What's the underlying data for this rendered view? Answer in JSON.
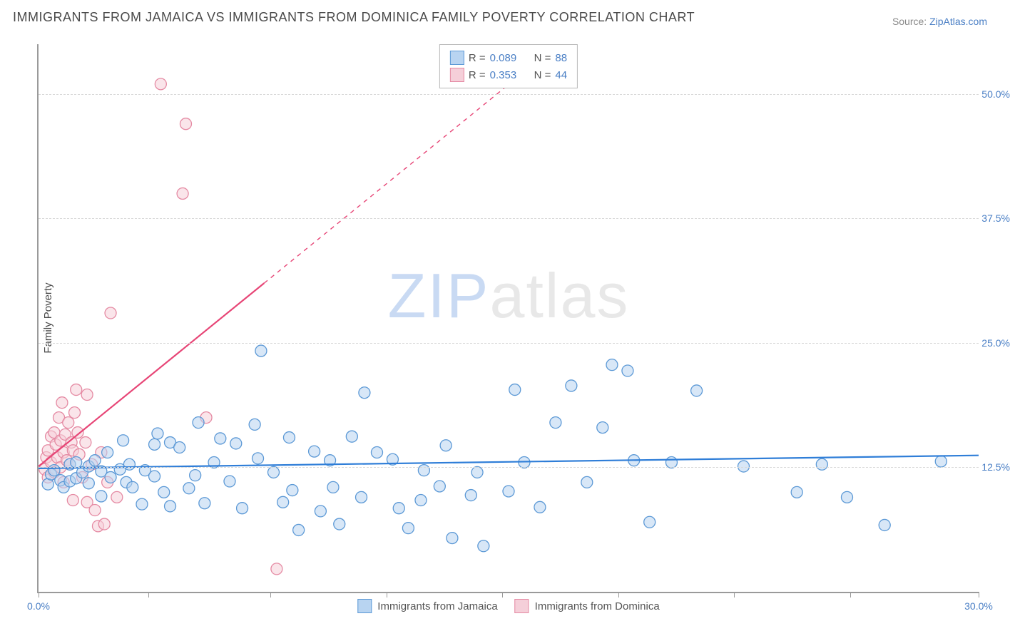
{
  "title": "IMMIGRANTS FROM JAMAICA VS IMMIGRANTS FROM DOMINICA FAMILY POVERTY CORRELATION CHART",
  "source_label": "Source: ",
  "source_link": "ZipAtlas.com",
  "watermark": {
    "zip": "ZIP",
    "atlas": "atlas",
    "zip_color": "#c9daf3",
    "atlas_color": "#e8e8e8"
  },
  "chart": {
    "type": "scatter",
    "background_color": "#ffffff",
    "grid_color": "#d8d8d8",
    "axis_color": "#9a9a9a",
    "xlim": [
      0,
      30
    ],
    "ylim": [
      0,
      55
    ],
    "y_gridlines": [
      12.5,
      25.0,
      37.5,
      50.0
    ],
    "y_tick_labels": [
      "12.5%",
      "25.0%",
      "37.5%",
      "50.0%"
    ],
    "x_tick_positions": [
      0,
      3.5,
      7.4,
      11.1,
      14.8,
      18.5,
      22.2,
      25.9,
      30
    ],
    "x_end_labels": {
      "start": "0.0%",
      "end": "30.0%"
    },
    "y_axis_title": "Family Poverty",
    "marker_radius": 8,
    "marker_stroke_width": 1.3,
    "line_width": 2.2,
    "series": [
      {
        "name": "Immigrants from Jamaica",
        "fill": "#b8d4f1",
        "stroke": "#5c99d6",
        "line_color": "#2f7ed8",
        "R": "0.089",
        "N": "88",
        "trend": {
          "x1": 0,
          "y1": 12.4,
          "x2": 30,
          "y2": 13.7,
          "dashed": false
        },
        "points": [
          [
            0.3,
            10.8
          ],
          [
            0.4,
            11.8
          ],
          [
            0.5,
            12.2
          ],
          [
            0.7,
            11.2
          ],
          [
            0.8,
            10.5
          ],
          [
            1.0,
            12.8
          ],
          [
            1.0,
            11.1
          ],
          [
            1.2,
            13.0
          ],
          [
            1.2,
            11.4
          ],
          [
            1.4,
            12.0
          ],
          [
            1.6,
            12.6
          ],
          [
            1.6,
            10.9
          ],
          [
            1.8,
            13.2
          ],
          [
            2.0,
            12.1
          ],
          [
            2.0,
            9.6
          ],
          [
            2.2,
            14.0
          ],
          [
            2.3,
            11.5
          ],
          [
            2.6,
            12.3
          ],
          [
            2.7,
            15.2
          ],
          [
            2.8,
            11.0
          ],
          [
            2.9,
            12.8
          ],
          [
            3.0,
            10.5
          ],
          [
            3.3,
            8.8
          ],
          [
            3.4,
            12.2
          ],
          [
            3.7,
            11.6
          ],
          [
            3.7,
            14.8
          ],
          [
            3.8,
            15.9
          ],
          [
            4.0,
            10.0
          ],
          [
            4.2,
            8.6
          ],
          [
            4.2,
            15.0
          ],
          [
            4.5,
            14.5
          ],
          [
            4.8,
            10.4
          ],
          [
            5.0,
            11.7
          ],
          [
            5.1,
            17.0
          ],
          [
            5.3,
            8.9
          ],
          [
            5.6,
            13.0
          ],
          [
            5.8,
            15.4
          ],
          [
            6.1,
            11.1
          ],
          [
            6.3,
            14.9
          ],
          [
            6.5,
            8.4
          ],
          [
            6.9,
            16.8
          ],
          [
            7.0,
            13.4
          ],
          [
            7.1,
            24.2
          ],
          [
            7.5,
            12.0
          ],
          [
            7.8,
            9.0
          ],
          [
            8.0,
            15.5
          ],
          [
            8.1,
            10.2
          ],
          [
            8.3,
            6.2
          ],
          [
            8.8,
            14.1
          ],
          [
            9.0,
            8.1
          ],
          [
            9.3,
            13.2
          ],
          [
            9.4,
            10.5
          ],
          [
            9.6,
            6.8
          ],
          [
            10.0,
            15.6
          ],
          [
            10.3,
            9.5
          ],
          [
            10.4,
            20.0
          ],
          [
            10.8,
            14.0
          ],
          [
            11.3,
            13.3
          ],
          [
            11.5,
            8.4
          ],
          [
            11.8,
            6.4
          ],
          [
            12.2,
            9.2
          ],
          [
            12.3,
            12.2
          ],
          [
            12.8,
            10.6
          ],
          [
            13.0,
            14.7
          ],
          [
            13.2,
            5.4
          ],
          [
            13.8,
            9.7
          ],
          [
            14.0,
            12.0
          ],
          [
            14.2,
            4.6
          ],
          [
            15.0,
            10.1
          ],
          [
            15.2,
            20.3
          ],
          [
            15.5,
            13.0
          ],
          [
            16.0,
            8.5
          ],
          [
            16.5,
            17.0
          ],
          [
            17.0,
            20.7
          ],
          [
            17.5,
            11.0
          ],
          [
            18.0,
            16.5
          ],
          [
            18.3,
            22.8
          ],
          [
            18.8,
            22.2
          ],
          [
            19.0,
            13.2
          ],
          [
            19.5,
            7.0
          ],
          [
            20.2,
            13.0
          ],
          [
            21.0,
            20.2
          ],
          [
            22.5,
            12.6
          ],
          [
            24.2,
            10.0
          ],
          [
            25.0,
            12.8
          ],
          [
            25.8,
            9.5
          ],
          [
            27.0,
            6.7
          ],
          [
            28.8,
            13.1
          ]
        ]
      },
      {
        "name": "Immigrants from Dominica",
        "fill": "#f5cfd9",
        "stroke": "#e58aa3",
        "line_color": "#e74576",
        "R": "0.353",
        "N": "44",
        "trend_solid": {
          "x1": 0,
          "y1": 12.6,
          "x2": 7.2,
          "y2": 31.0
        },
        "trend_dash": {
          "x1": 7.2,
          "y1": 31.0,
          "x2": 16.0,
          "y2": 53.5
        },
        "points": [
          [
            0.2,
            12.3
          ],
          [
            0.25,
            13.5
          ],
          [
            0.3,
            11.5
          ],
          [
            0.3,
            14.2
          ],
          [
            0.4,
            15.6
          ],
          [
            0.4,
            13.0
          ],
          [
            0.5,
            12.0
          ],
          [
            0.5,
            16.0
          ],
          [
            0.55,
            14.8
          ],
          [
            0.6,
            13.5
          ],
          [
            0.65,
            17.5
          ],
          [
            0.7,
            15.2
          ],
          [
            0.7,
            12.5
          ],
          [
            0.75,
            19.0
          ],
          [
            0.8,
            14.0
          ],
          [
            0.8,
            11.0
          ],
          [
            0.85,
            15.8
          ],
          [
            0.9,
            13.2
          ],
          [
            0.95,
            17.0
          ],
          [
            1.0,
            12.8
          ],
          [
            1.05,
            15.0
          ],
          [
            1.1,
            9.2
          ],
          [
            1.1,
            14.2
          ],
          [
            1.15,
            18.0
          ],
          [
            1.2,
            20.3
          ],
          [
            1.25,
            16.0
          ],
          [
            1.3,
            13.8
          ],
          [
            1.4,
            11.5
          ],
          [
            1.5,
            15.0
          ],
          [
            1.55,
            9.0
          ],
          [
            1.55,
            19.8
          ],
          [
            1.7,
            12.8
          ],
          [
            1.8,
            8.2
          ],
          [
            1.9,
            6.6
          ],
          [
            2.0,
            14.0
          ],
          [
            2.1,
            6.8
          ],
          [
            2.2,
            11.0
          ],
          [
            2.3,
            28.0
          ],
          [
            2.5,
            9.5
          ],
          [
            3.9,
            51.0
          ],
          [
            4.6,
            40.0
          ],
          [
            4.7,
            47.0
          ],
          [
            5.35,
            17.5
          ],
          [
            7.6,
            2.3
          ]
        ]
      }
    ]
  },
  "legend_box_labels": {
    "R": "R =",
    "N": "N ="
  }
}
